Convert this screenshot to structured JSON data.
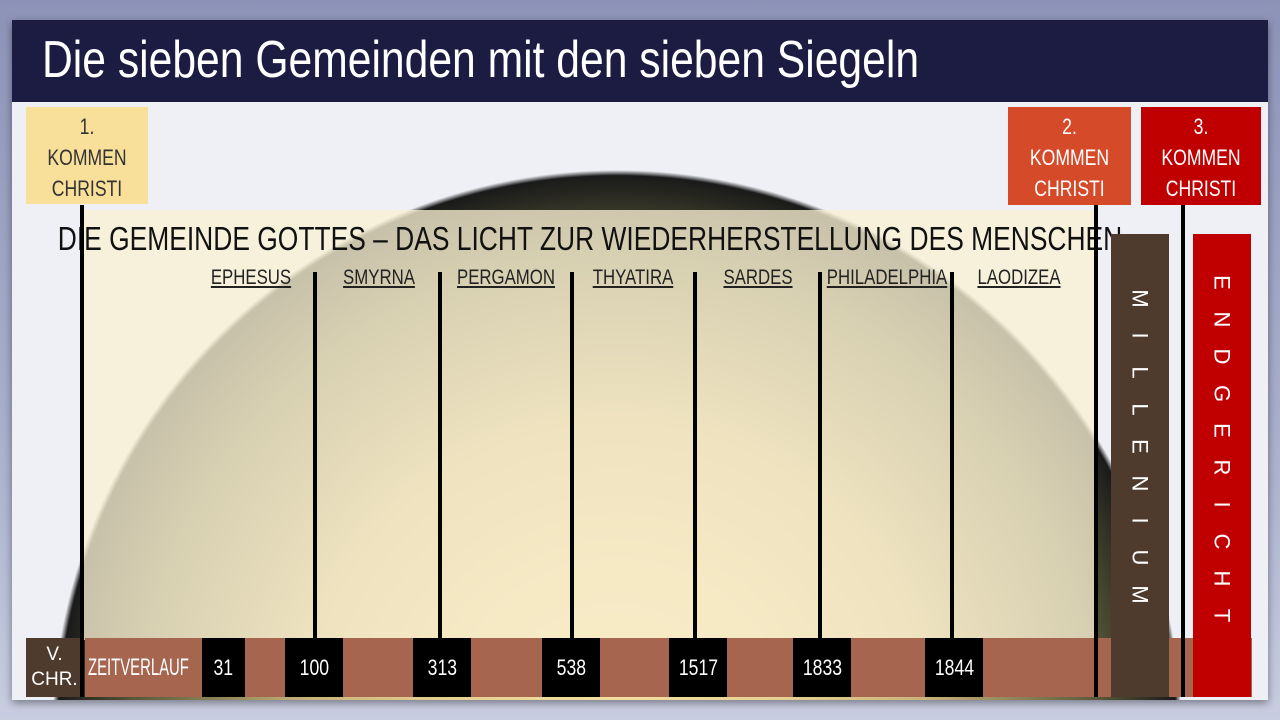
{
  "title": "Die sieben Gemeinden mit den sieben Siegeln",
  "comings": [
    {
      "num": "1.",
      "l1": "KOMMEN",
      "l2": "CHRISTI",
      "color": "#f8e09a"
    },
    {
      "num": "2.",
      "l1": "KOMMEN",
      "l2": "CHRISTI",
      "color": "#d54a29"
    },
    {
      "num": "3.",
      "l1": "KOMMEN",
      "l2": "CHRISTI",
      "color": "#c00000"
    }
  ],
  "heading": "DIE GEMEINDE GOTTES – DAS LICHT ZUR WIEDERHERSTELLUNG DES MENSCHEN",
  "churches": [
    "EPHESUS",
    "SMYRNA",
    "PERGAMON",
    "THYATIRA",
    "SARDES",
    "PHILADELPHIA",
    "LAODIZEA"
  ],
  "timeline": {
    "bc_l1": "V.",
    "bc_l2": "CHR.",
    "label": "ZEITVERLAUF",
    "years": [
      "31",
      "100",
      "313",
      "538",
      "1517",
      "1833",
      "1844"
    ]
  },
  "millennium": "MILLENIUM",
  "judgment": "ENDGERICHT"
}
